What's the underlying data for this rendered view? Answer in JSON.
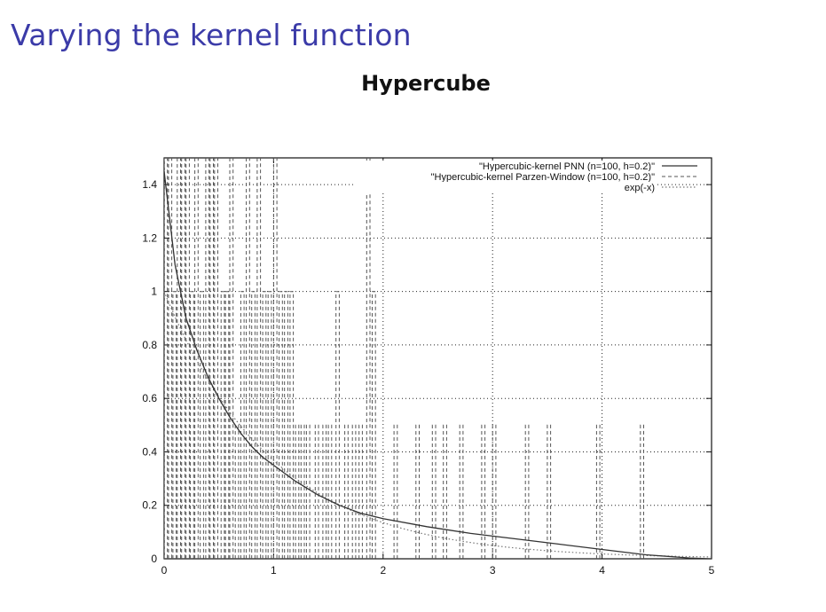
{
  "slide": {
    "title": "Varying the kernel function"
  },
  "chart_data": {
    "type": "line",
    "title": "Hypercube",
    "xlabel": "",
    "ylabel": "",
    "xlim": [
      0,
      5
    ],
    "ylim": [
      0,
      1.5
    ],
    "xticks": [
      0,
      1,
      2,
      3,
      4,
      5
    ],
    "yticks": [
      0,
      0.2,
      0.4,
      0.6,
      0.8,
      1,
      1.2,
      1.4
    ],
    "grid": true,
    "legend_position": "top-right",
    "series": [
      {
        "name": "\"Hypercubic-kernel PNN (n=100, h=0.2)\"",
        "style": "solid",
        "color": "#333333",
        "x": [
          0,
          0.1,
          0.2,
          0.3,
          0.4,
          0.5,
          0.6,
          0.7,
          0.8,
          0.9,
          1.0,
          1.2,
          1.4,
          1.6,
          1.8,
          2.0,
          2.4,
          2.8,
          3.2,
          3.6,
          4.0,
          4.4,
          4.8,
          5.0
        ],
        "y": [
          1.45,
          1.1,
          0.9,
          0.78,
          0.68,
          0.6,
          0.53,
          0.47,
          0.42,
          0.38,
          0.35,
          0.29,
          0.24,
          0.2,
          0.17,
          0.15,
          0.12,
          0.095,
          0.075,
          0.055,
          0.035,
          0.015,
          0.003,
          0.0
        ]
      },
      {
        "name": "\"Hypercubic-kernel Parzen-Window (n=100, h=0.2)\"",
        "style": "dashed",
        "color": "#555555",
        "spikes": [
          {
            "x": 0.0,
            "h": 1.5
          },
          {
            "x": 0.04,
            "h": 1.5
          },
          {
            "x": 0.08,
            "h": 1.0
          },
          {
            "x": 0.12,
            "h": 1.5
          },
          {
            "x": 0.16,
            "h": 1.5
          },
          {
            "x": 0.2,
            "h": 1.5
          },
          {
            "x": 0.24,
            "h": 1.0
          },
          {
            "x": 0.28,
            "h": 1.5
          },
          {
            "x": 0.33,
            "h": 1.0
          },
          {
            "x": 0.38,
            "h": 1.5
          },
          {
            "x": 0.42,
            "h": 1.5
          },
          {
            "x": 0.46,
            "h": 1.5
          },
          {
            "x": 0.52,
            "h": 1.0
          },
          {
            "x": 0.56,
            "h": 1.0
          },
          {
            "x": 0.6,
            "h": 1.5
          },
          {
            "x": 0.65,
            "h": 0.5
          },
          {
            "x": 0.7,
            "h": 1.0
          },
          {
            "x": 0.75,
            "h": 1.5
          },
          {
            "x": 0.8,
            "h": 1.0
          },
          {
            "x": 0.85,
            "h": 1.5
          },
          {
            "x": 0.9,
            "h": 1.0
          },
          {
            "x": 0.95,
            "h": 1.0
          },
          {
            "x": 1.0,
            "h": 1.5
          },
          {
            "x": 1.05,
            "h": 1.0
          },
          {
            "x": 1.1,
            "h": 1.0
          },
          {
            "x": 1.15,
            "h": 1.0
          },
          {
            "x": 1.2,
            "h": 0.5
          },
          {
            "x": 1.25,
            "h": 0.5
          },
          {
            "x": 1.3,
            "h": 0.5
          },
          {
            "x": 1.38,
            "h": 0.5
          },
          {
            "x": 1.45,
            "h": 0.5
          },
          {
            "x": 1.5,
            "h": 0.5
          },
          {
            "x": 1.57,
            "h": 1.0
          },
          {
            "x": 1.65,
            "h": 0.5
          },
          {
            "x": 1.72,
            "h": 0.5
          },
          {
            "x": 1.78,
            "h": 0.5
          },
          {
            "x": 1.85,
            "h": 1.5
          },
          {
            "x": 1.9,
            "h": 1.0
          },
          {
            "x": 2.1,
            "h": 0.5
          },
          {
            "x": 2.3,
            "h": 0.5
          },
          {
            "x": 2.45,
            "h": 0.5
          },
          {
            "x": 2.55,
            "h": 0.5
          },
          {
            "x": 2.7,
            "h": 0.5
          },
          {
            "x": 2.9,
            "h": 0.5
          },
          {
            "x": 3.0,
            "h": 0.5
          },
          {
            "x": 3.3,
            "h": 0.5
          },
          {
            "x": 3.5,
            "h": 0.5
          },
          {
            "x": 3.95,
            "h": 0.5
          },
          {
            "x": 4.35,
            "h": 0.5
          }
        ],
        "spike_width": 0.03
      },
      {
        "name": "exp(-x)",
        "style": "dotted",
        "color": "#777777",
        "function": "exp(-x)"
      }
    ]
  }
}
